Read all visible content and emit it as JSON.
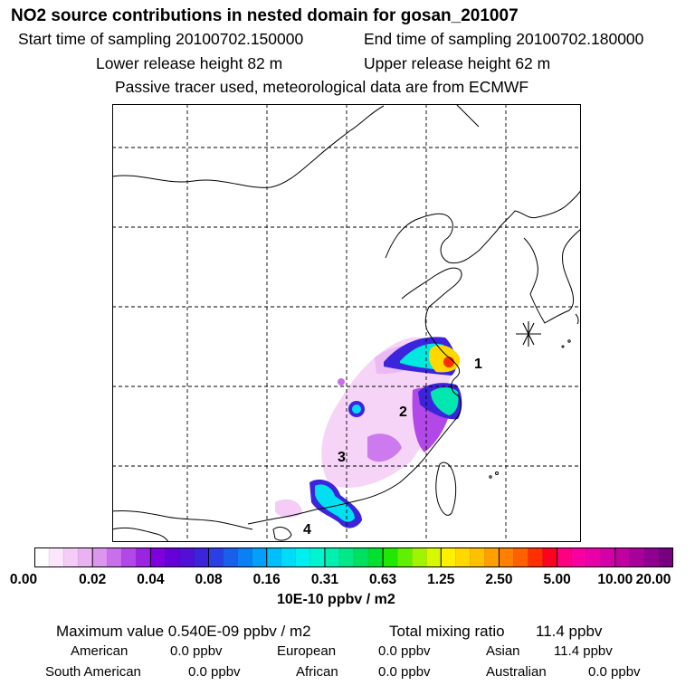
{
  "header": {
    "title": "NO2 source contributions in nested domain for gosan_201007",
    "start_label": "Start time of sampling 20100702.150000",
    "end_label": "End time of sampling 20100702.180000",
    "lower_label": "Lower release height   82 m",
    "upper_label": "Upper release height   62 m",
    "note": "Passive tracer used, meteorological data are from ECMWF"
  },
  "map": {
    "source_labels": [
      "1",
      "2",
      "3",
      "4"
    ],
    "receptor_marker": "gosan-receptor"
  },
  "colorbar": {
    "ticks": [
      "0.00",
      "0.02",
      "0.04",
      "0.08",
      "0.16",
      "0.31",
      "0.63",
      "1.25",
      "2.50",
      "5.00",
      "10.00",
      "20.00"
    ],
    "colors": [
      "#ffffff",
      "#fbe6fb",
      "#f4ccf6",
      "#eab2f3",
      "#dc96f0",
      "#c870ec",
      "#b248e8",
      "#9a24e2",
      "#7e00dc",
      "#6600d8",
      "#5210d6",
      "#3c24dc",
      "#2a40e4",
      "#1860ec",
      "#0a80f4",
      "#02a0fa",
      "#00c0fc",
      "#00dcf8",
      "#00f0f0",
      "#00f4d0",
      "#00f0b0",
      "#00e888",
      "#00e060",
      "#00e030",
      "#20e800",
      "#60f000",
      "#a0f400",
      "#d8f800",
      "#fff000",
      "#ffd800",
      "#ffc000",
      "#ffa000",
      "#ff8000",
      "#ff6000",
      "#ff3000",
      "#ff0020",
      "#ff0080",
      "#f800a0",
      "#e800a8",
      "#d400a8",
      "#c000a0",
      "#a80098",
      "#900090",
      "#780080"
    ],
    "unit": "10E-10 ppbv / m2"
  },
  "stats": {
    "max_label": "Maximum value  0.540E-09 ppbv / m2",
    "total_label": "Total mixing ratio",
    "total_value": "11.4 ppbv",
    "regions": [
      {
        "name": "American",
        "value": "0.0 ppbv"
      },
      {
        "name": "European",
        "value": "0.0 ppbv"
      },
      {
        "name": "Asian",
        "value": "11.4 ppbv"
      },
      {
        "name": "South American",
        "value": "0.0 ppbv"
      },
      {
        "name": "African",
        "value": "0.0 ppbv"
      },
      {
        "name": "Australian",
        "value": "0.0 ppbv"
      }
    ]
  }
}
